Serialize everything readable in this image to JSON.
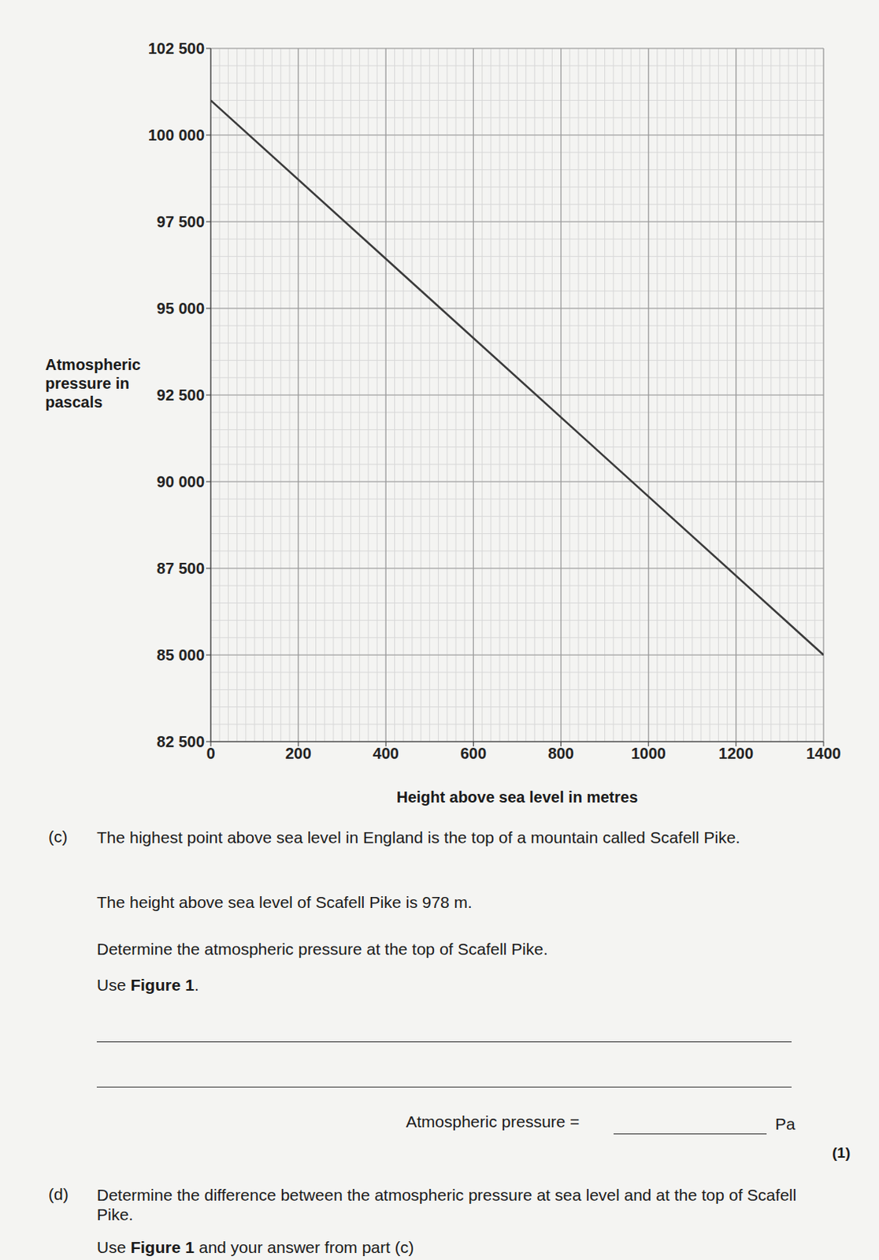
{
  "chart_data": {
    "type": "line",
    "x_label": "Height above sea level in metres",
    "y_label": "Atmospheric pressure in pascals",
    "x": [
      0,
      1400
    ],
    "values": [
      101000,
      85000
    ],
    "color": "#3a3a3a",
    "xlim": [
      0,
      1400
    ],
    "xticks": [
      0,
      200,
      400,
      600,
      800,
      1000,
      1200,
      1400
    ],
    "ylim": [
      82500,
      102500
    ],
    "yticks": [
      {
        "value": 82500,
        "label": "82 500"
      },
      {
        "value": 85000,
        "label": "85 000"
      },
      {
        "value": 87500,
        "label": "87 500"
      },
      {
        "value": 90000,
        "label": "90 000"
      },
      {
        "value": 92500,
        "label": "92 500"
      },
      {
        "value": 95000,
        "label": "95 000"
      },
      {
        "value": 97500,
        "label": "97 500"
      },
      {
        "value": 100000,
        "label": "100 000"
      },
      {
        "value": 102500,
        "label": "102 500"
      }
    ],
    "grid": true
  },
  "part_c": {
    "label": "(c)",
    "text": "The highest point above sea level in England is the top of a mountain called Scafell Pike.",
    "height_text": "The height above sea level of Scafell Pike is 978 m.",
    "instruction": "Determine the atmospheric pressure at the top of Scafell Pike.",
    "use_figure": [
      "Use ",
      "Figure 1",
      "."
    ],
    "answer_label": "Atmospheric pressure =",
    "answer_unit": "Pa",
    "marks": "(1)"
  },
  "part_d": {
    "label": "(d)",
    "text": "Determine the difference between the atmospheric pressure at sea level and at the top of Scafell Pike.",
    "use_figure": [
      "Use ",
      "Figure 1",
      " and your answer from part (c)"
    ]
  }
}
